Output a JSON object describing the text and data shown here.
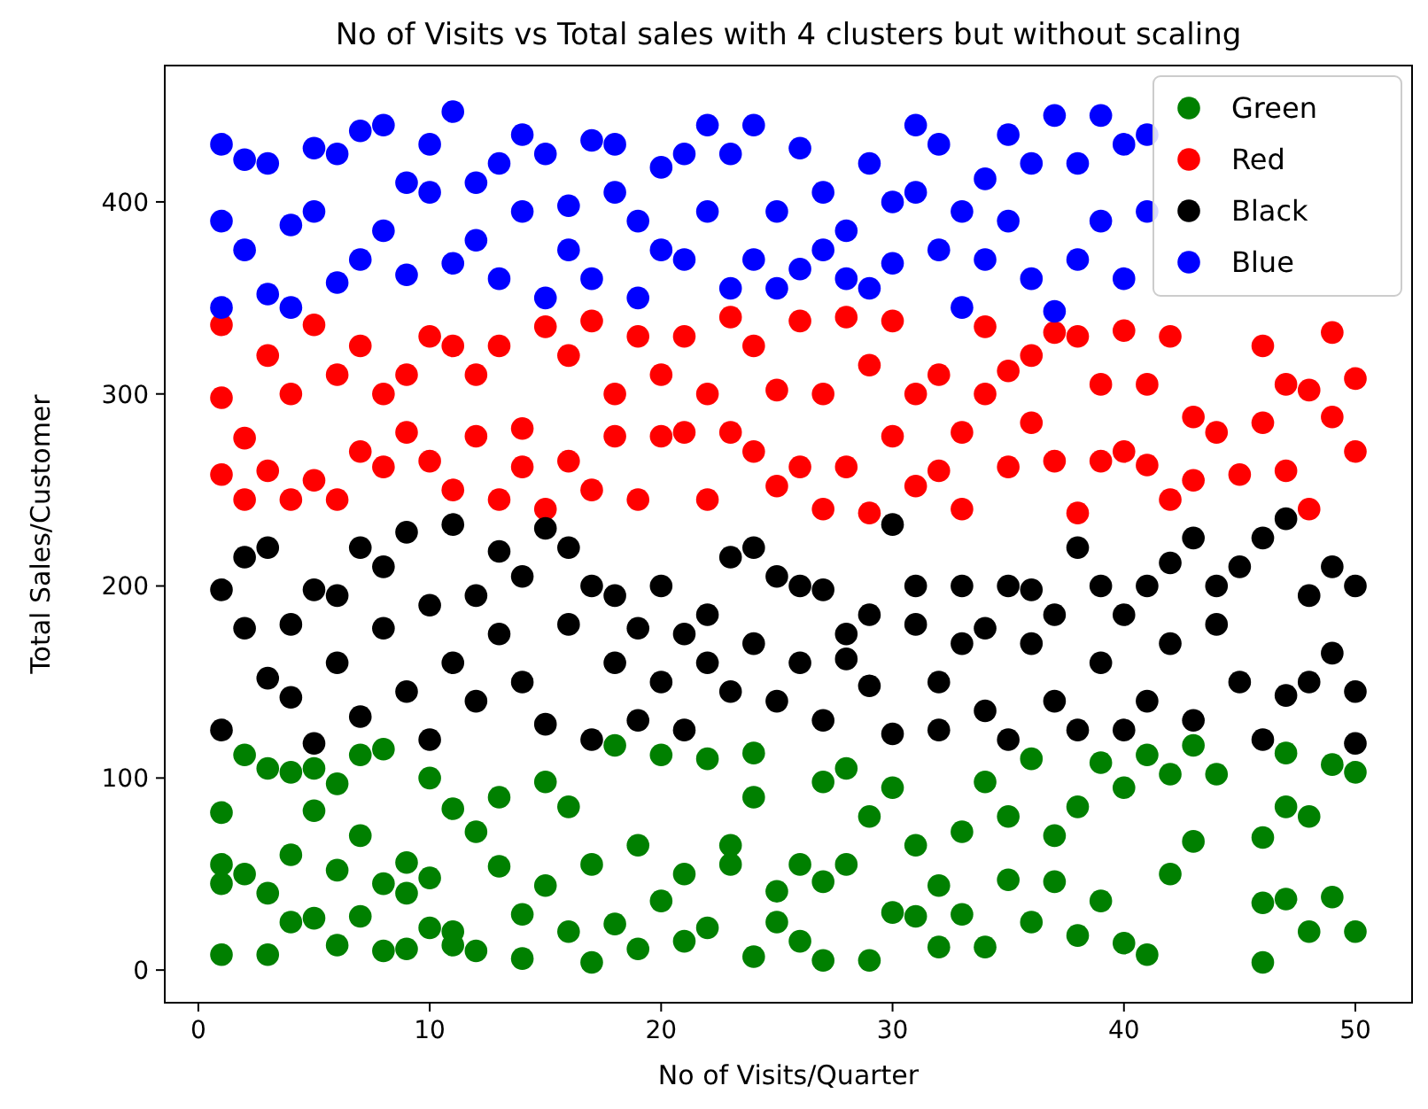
{
  "chart_data": {
    "type": "scatter",
    "title": "No of Visits vs Total sales with 4 clusters but without scaling",
    "xlabel": "No of Visits/Quarter",
    "ylabel": "Total Sales/Customer",
    "xlim": [
      -1.45,
      52.45
    ],
    "ylim": [
      -17,
      471
    ],
    "xticks": [
      0,
      10,
      20,
      30,
      40,
      50
    ],
    "yticks": [
      0,
      100,
      200,
      300,
      400
    ],
    "legend": "top right",
    "marker": "circle",
    "series": [
      {
        "name": "Green",
        "color": "#008000",
        "x": [
          1,
          1,
          1,
          1,
          2,
          2,
          3,
          3,
          3,
          4,
          4,
          4,
          5,
          5,
          5,
          6,
          6,
          6,
          7,
          7,
          7,
          8,
          8,
          8,
          9,
          9,
          9,
          10,
          10,
          10,
          11,
          11,
          11,
          12,
          12,
          13,
          13,
          14,
          14,
          15,
          15,
          16,
          16,
          17,
          17,
          18,
          18,
          19,
          19,
          20,
          20,
          21,
          21,
          22,
          22,
          23,
          23,
          24,
          24,
          24,
          25,
          25,
          26,
          26,
          27,
          27,
          27,
          28,
          28,
          29,
          29,
          30,
          30,
          31,
          31,
          32,
          32,
          33,
          33,
          34,
          34,
          35,
          35,
          36,
          36,
          37,
          37,
          38,
          38,
          39,
          39,
          40,
          40,
          41,
          41,
          42,
          42,
          43,
          43,
          44,
          46,
          46,
          46,
          47,
          47,
          47,
          48,
          48,
          49,
          49,
          50,
          50
        ],
        "values": [
          8,
          45,
          82,
          55,
          50,
          112,
          8,
          105,
          40,
          103,
          60,
          25,
          27,
          83,
          105,
          13,
          52,
          97,
          28,
          70,
          112,
          10,
          115,
          45,
          11,
          56,
          40,
          22,
          48,
          100,
          20,
          84,
          13,
          72,
          10,
          54,
          90,
          6,
          29,
          98,
          44,
          20,
          85,
          4,
          55,
          24,
          117,
          11,
          65,
          36,
          112,
          15,
          50,
          22,
          110,
          55,
          65,
          7,
          90,
          113,
          25,
          41,
          55,
          15,
          5,
          46,
          98,
          55,
          105,
          5,
          80,
          30,
          95,
          28,
          65,
          12,
          44,
          29,
          72,
          12,
          98,
          47,
          80,
          25,
          110,
          70,
          46,
          18,
          85,
          36,
          108,
          14,
          95,
          8,
          112,
          50,
          102,
          67,
          117,
          102,
          4,
          69,
          35,
          37,
          85,
          113,
          20,
          80,
          38,
          107,
          20,
          103
        ]
      },
      {
        "name": "Red",
        "color": "#ff0000",
        "x": [
          1,
          1,
          1,
          2,
          2,
          3,
          3,
          4,
          4,
          5,
          5,
          6,
          6,
          7,
          7,
          8,
          8,
          9,
          9,
          10,
          10,
          11,
          11,
          12,
          12,
          13,
          13,
          14,
          14,
          15,
          15,
          16,
          16,
          17,
          17,
          18,
          18,
          19,
          19,
          20,
          20,
          21,
          21,
          22,
          22,
          23,
          23,
          24,
          24,
          25,
          25,
          26,
          26,
          27,
          27,
          28,
          28,
          29,
          29,
          30,
          30,
          31,
          31,
          32,
          32,
          33,
          33,
          34,
          34,
          35,
          35,
          36,
          36,
          37,
          37,
          38,
          38,
          39,
          39,
          40,
          40,
          41,
          41,
          42,
          42,
          43,
          43,
          44,
          45,
          46,
          46,
          47,
          47,
          48,
          48,
          49,
          49,
          50,
          50
        ],
        "values": [
          258,
          298,
          336,
          245,
          277,
          260,
          320,
          245,
          300,
          255,
          336,
          245,
          310,
          270,
          325,
          262,
          300,
          310,
          280,
          330,
          265,
          250,
          325,
          278,
          310,
          245,
          325,
          282,
          262,
          240,
          335,
          265,
          320,
          250,
          338,
          300,
          278,
          245,
          330,
          278,
          310,
          280,
          330,
          245,
          300,
          280,
          340,
          270,
          325,
          252,
          302,
          262,
          338,
          240,
          300,
          262,
          340,
          238,
          315,
          278,
          338,
          252,
          300,
          260,
          310,
          240,
          280,
          300,
          335,
          262,
          312,
          285,
          320,
          265,
          332,
          238,
          330,
          265,
          305,
          270,
          333,
          305,
          263,
          245,
          330,
          255,
          288,
          280,
          258,
          285,
          325,
          260,
          305,
          240,
          302,
          332,
          288,
          270,
          308
        ]
      },
      {
        "name": "Black",
        "color": "#000000",
        "x": [
          1,
          1,
          2,
          2,
          3,
          3,
          4,
          4,
          5,
          5,
          6,
          6,
          7,
          7,
          8,
          8,
          9,
          9,
          10,
          10,
          11,
          11,
          12,
          12,
          13,
          13,
          14,
          14,
          15,
          15,
          16,
          16,
          17,
          17,
          18,
          18,
          19,
          19,
          20,
          20,
          21,
          21,
          22,
          22,
          23,
          23,
          24,
          24,
          25,
          25,
          26,
          26,
          27,
          27,
          28,
          28,
          29,
          29,
          30,
          30,
          31,
          31,
          32,
          32,
          33,
          33,
          34,
          34,
          35,
          35,
          36,
          36,
          37,
          37,
          38,
          38,
          39,
          39,
          40,
          40,
          41,
          41,
          42,
          42,
          43,
          43,
          44,
          44,
          45,
          45,
          46,
          46,
          47,
          47,
          48,
          48,
          49,
          49,
          50,
          50,
          50
        ],
        "values": [
          125,
          198,
          178,
          215,
          152,
          220,
          180,
          142,
          118,
          198,
          160,
          195,
          132,
          220,
          178,
          210,
          145,
          228,
          120,
          190,
          160,
          232,
          140,
          195,
          175,
          218,
          150,
          205,
          128,
          230,
          180,
          220,
          120,
          200,
          160,
          195,
          130,
          178,
          200,
          150,
          125,
          175,
          185,
          160,
          145,
          215,
          220,
          170,
          140,
          205,
          200,
          160,
          130,
          198,
          175,
          162,
          148,
          185,
          123,
          232,
          180,
          200,
          150,
          125,
          170,
          200,
          135,
          178,
          120,
          200,
          170,
          198,
          140,
          185,
          125,
          220,
          160,
          200,
          125,
          185,
          200,
          140,
          170,
          212,
          130,
          225,
          180,
          200,
          150,
          210,
          120,
          225,
          143,
          235,
          195,
          150,
          165,
          210,
          118,
          145,
          200
        ]
      },
      {
        "name": "Blue",
        "color": "#0000ff",
        "x": [
          1,
          1,
          1,
          2,
          2,
          3,
          3,
          4,
          4,
          5,
          5,
          6,
          6,
          7,
          7,
          8,
          8,
          9,
          9,
          10,
          10,
          11,
          11,
          12,
          12,
          13,
          13,
          14,
          14,
          15,
          15,
          16,
          16,
          17,
          17,
          18,
          18,
          19,
          19,
          20,
          20,
          21,
          21,
          22,
          22,
          23,
          23,
          24,
          24,
          25,
          25,
          26,
          26,
          27,
          27,
          28,
          28,
          29,
          29,
          30,
          30,
          31,
          31,
          32,
          32,
          33,
          33,
          34,
          34,
          35,
          35,
          36,
          36,
          37,
          37,
          38,
          38,
          39,
          39,
          40,
          40,
          41,
          41
        ],
        "values": [
          345,
          390,
          430,
          375,
          422,
          352,
          420,
          388,
          345,
          395,
          428,
          358,
          425,
          370,
          437,
          385,
          440,
          362,
          410,
          405,
          430,
          368,
          447,
          380,
          410,
          420,
          360,
          395,
          435,
          350,
          425,
          398,
          375,
          432,
          360,
          405,
          430,
          350,
          390,
          375,
          418,
          370,
          425,
          440,
          395,
          355,
          425,
          440,
          370,
          395,
          355,
          428,
          365,
          375,
          405,
          385,
          360,
          420,
          355,
          400,
          368,
          440,
          405,
          375,
          430,
          345,
          395,
          370,
          412,
          390,
          435,
          420,
          360,
          343,
          445,
          370,
          420,
          390,
          445,
          430,
          360,
          395,
          435
        ]
      }
    ]
  }
}
